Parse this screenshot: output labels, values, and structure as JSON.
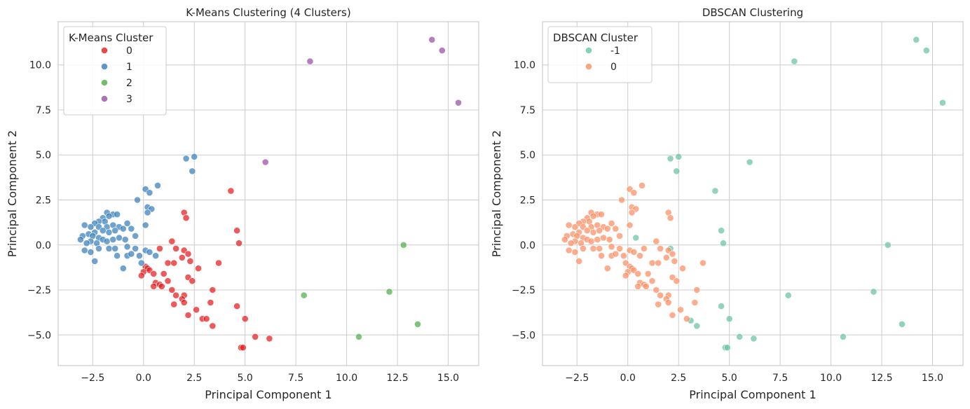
{
  "chart_data": [
    {
      "type": "scatter",
      "title": "K-Means Clustering (4 Clusters)",
      "xlabel": "Principal Component 1",
      "ylabel": "Principal Component 2",
      "xlim": [
        -4.2,
        16.5
      ],
      "ylim": [
        -6.7,
        12.4
      ],
      "xticks": [
        -2.5,
        0,
        2.5,
        5,
        7.5,
        10,
        12.5,
        15
      ],
      "xtick_labels": [
        "−2.5",
        "0.0",
        "2.5",
        "5.0",
        "7.5",
        "10.0",
        "12.5",
        "15.0"
      ],
      "yticks": [
        -5,
        -2.5,
        0,
        2.5,
        5,
        7.5,
        10
      ],
      "ytick_labels": [
        "−5.0",
        "−2.5",
        "0.0",
        "2.5",
        "5.0",
        "7.5",
        "10.0"
      ],
      "grid": true,
      "legend": {
        "title": "K-Means Cluster",
        "placement": "upper left"
      },
      "series": [
        {
          "name": "0",
          "color": "#e41a1c",
          "points": [
            [
              4.3,
              3.0
            ],
            [
              2.0,
              1.8
            ],
            [
              2.1,
              1.5
            ],
            [
              4.6,
              0.8
            ],
            [
              4.7,
              0.1
            ],
            [
              1.4,
              0.2
            ],
            [
              1.6,
              -0.2
            ],
            [
              2.0,
              -0.3
            ],
            [
              2.2,
              -0.5
            ],
            [
              0.8,
              -0.2
            ],
            [
              1.9,
              -0.7
            ],
            [
              2.3,
              -0.9
            ],
            [
              3.7,
              -1.0
            ],
            [
              1.2,
              -1.0
            ],
            [
              1.5,
              -1.0
            ],
            [
              0.1,
              -1.2
            ],
            [
              0.2,
              -1.3
            ],
            [
              0.0,
              -1.5
            ],
            [
              0.3,
              -1.4
            ],
            [
              2.7,
              -1.3
            ],
            [
              -0.1,
              -1.7
            ],
            [
              0.5,
              -1.6
            ],
            [
              1.0,
              -1.6
            ],
            [
              2.2,
              -1.8
            ],
            [
              2.4,
              -2.0
            ],
            [
              0.6,
              -2.1
            ],
            [
              1.2,
              -2.0
            ],
            [
              0.8,
              -2.2
            ],
            [
              0.5,
              -2.3
            ],
            [
              0.9,
              -2.3
            ],
            [
              1.4,
              -2.5
            ],
            [
              3.4,
              -2.5
            ],
            [
              1.6,
              -2.8
            ],
            [
              2.0,
              -2.8
            ],
            [
              1.9,
              -3.0
            ],
            [
              2.0,
              -3.2
            ],
            [
              1.5,
              -3.3
            ],
            [
              3.3,
              -3.2
            ],
            [
              2.6,
              -3.6
            ],
            [
              4.6,
              -3.4
            ],
            [
              2.2,
              -3.9
            ],
            [
              2.9,
              -4.1
            ],
            [
              3.1,
              -4.1
            ],
            [
              3.4,
              -4.5
            ],
            [
              5.0,
              -4.1
            ],
            [
              5.5,
              -5.1
            ],
            [
              6.2,
              -5.2
            ],
            [
              4.8,
              -5.7
            ],
            [
              4.9,
              -5.7
            ]
          ]
        },
        {
          "name": "1",
          "color": "#377eb8",
          "points": [
            [
              2.5,
              4.9
            ],
            [
              2.1,
              4.8
            ],
            [
              2.4,
              4.1
            ],
            [
              0.7,
              3.3
            ],
            [
              0.1,
              3.1
            ],
            [
              0.3,
              2.9
            ],
            [
              -0.3,
              2.5
            ],
            [
              0.2,
              2.1
            ],
            [
              0.4,
              2.0
            ],
            [
              0.2,
              1.8
            ],
            [
              -1.8,
              1.8
            ],
            [
              -1.5,
              1.7
            ],
            [
              -1.3,
              1.7
            ],
            [
              -1.7,
              1.6
            ],
            [
              -2.0,
              1.5
            ],
            [
              -1.9,
              1.3
            ],
            [
              -2.2,
              1.3
            ],
            [
              -1.8,
              1.0
            ],
            [
              -2.4,
              1.2
            ],
            [
              -2.6,
              1.0
            ],
            [
              -2.9,
              1.1
            ],
            [
              -2.2,
              1.0
            ],
            [
              -1.5,
              1.1
            ],
            [
              -1.2,
              1.0
            ],
            [
              -0.8,
              1.2
            ],
            [
              -0.6,
              0.9
            ],
            [
              -1.0,
              0.9
            ],
            [
              -1.4,
              0.8
            ],
            [
              -1.7,
              0.7
            ],
            [
              -2.0,
              0.8
            ],
            [
              -2.4,
              0.7
            ],
            [
              -2.7,
              0.6
            ],
            [
              -3.0,
              0.5
            ],
            [
              -2.5,
              0.5
            ],
            [
              -2.2,
              0.4
            ],
            [
              -2.0,
              0.3
            ],
            [
              -2.6,
              0.2
            ],
            [
              -3.1,
              0.3
            ],
            [
              -2.8,
              0.1
            ],
            [
              -2.3,
              0.1
            ],
            [
              -1.8,
              0.2
            ],
            [
              -1.5,
              0.3
            ],
            [
              -1.2,
              0.4
            ],
            [
              -0.9,
              0.3
            ],
            [
              -0.4,
              0.5
            ],
            [
              0.1,
              1.1
            ],
            [
              -2.9,
              -0.3
            ],
            [
              -2.6,
              -0.4
            ],
            [
              -2.2,
              -0.2
            ],
            [
              -1.7,
              -0.2
            ],
            [
              -1.4,
              -0.2
            ],
            [
              -0.8,
              -0.1
            ],
            [
              -0.4,
              -0.2
            ],
            [
              -2.4,
              -0.9
            ],
            [
              -1.3,
              -0.6
            ],
            [
              -0.8,
              -0.6
            ],
            [
              -0.6,
              -0.5
            ],
            [
              -0.2,
              -0.6
            ],
            [
              0.1,
              -0.3
            ],
            [
              0.3,
              -0.4
            ],
            [
              0.6,
              -0.6
            ],
            [
              -1.0,
              -1.3
            ],
            [
              -0.1,
              -1.0
            ]
          ]
        },
        {
          "name": "2",
          "color": "#4daf4a",
          "points": [
            [
              12.8,
              0.0
            ],
            [
              12.1,
              -2.6
            ],
            [
              7.9,
              -2.8
            ],
            [
              13.5,
              -4.4
            ],
            [
              10.6,
              -5.1
            ]
          ]
        },
        {
          "name": "3",
          "color": "#984ea3",
          "points": [
            [
              8.2,
              10.2
            ],
            [
              14.2,
              11.4
            ],
            [
              14.7,
              10.8
            ],
            [
              15.5,
              7.9
            ],
            [
              6.0,
              4.6
            ]
          ]
        }
      ]
    },
    {
      "type": "scatter",
      "title": "DBSCAN Clustering",
      "xlabel": "Principal Component 1",
      "ylabel": "Principal Component 2",
      "xlim": [
        -4.2,
        16.5
      ],
      "ylim": [
        -6.7,
        12.4
      ],
      "xticks": [
        -2.5,
        0,
        2.5,
        5,
        7.5,
        10,
        12.5,
        15
      ],
      "xtick_labels": [
        "−2.5",
        "0.0",
        "2.5",
        "5.0",
        "7.5",
        "10.0",
        "12.5",
        "15.0"
      ],
      "yticks": [
        -5,
        -2.5,
        0,
        2.5,
        5,
        7.5,
        10
      ],
      "ytick_labels": [
        "−5.0",
        "−2.5",
        "0.0",
        "2.5",
        "5.0",
        "7.5",
        "10.0"
      ],
      "grid": true,
      "legend": {
        "title": "DBSCAN Cluster",
        "placement": "upper left"
      },
      "series": [
        {
          "name": "-1",
          "color": "#66c2a5",
          "points": [
            [
              14.2,
              11.4
            ],
            [
              14.7,
              10.8
            ],
            [
              8.2,
              10.2
            ],
            [
              15.5,
              7.9
            ],
            [
              2.5,
              4.9
            ],
            [
              2.1,
              4.8
            ],
            [
              2.4,
              4.1
            ],
            [
              6.0,
              4.6
            ],
            [
              4.3,
              3.0
            ],
            [
              4.6,
              0.8
            ],
            [
              4.7,
              0.1
            ],
            [
              12.8,
              0.0
            ],
            [
              0.4,
              0.4
            ],
            [
              2.1,
              -0.2
            ],
            [
              12.1,
              -2.6
            ],
            [
              7.9,
              -2.8
            ],
            [
              4.6,
              -3.4
            ],
            [
              13.5,
              -4.4
            ],
            [
              5.0,
              -4.1
            ],
            [
              3.1,
              -4.2
            ],
            [
              3.4,
              -4.5
            ],
            [
              5.5,
              -5.1
            ],
            [
              6.2,
              -5.2
            ],
            [
              10.6,
              -5.1
            ],
            [
              4.8,
              -5.7
            ],
            [
              4.9,
              -5.7
            ]
          ]
        },
        {
          "name": "0",
          "color": "#fc8d62",
          "points": [
            [
              0.7,
              3.3
            ],
            [
              0.1,
              3.1
            ],
            [
              0.3,
              2.9
            ],
            [
              -0.3,
              2.5
            ],
            [
              0.2,
              2.1
            ],
            [
              0.4,
              2.0
            ],
            [
              0.2,
              1.8
            ],
            [
              2.0,
              1.8
            ],
            [
              2.1,
              1.5
            ],
            [
              -1.8,
              1.8
            ],
            [
              -1.5,
              1.7
            ],
            [
              -1.3,
              1.7
            ],
            [
              -1.7,
              1.6
            ],
            [
              -2.0,
              1.5
            ],
            [
              -1.9,
              1.3
            ],
            [
              -2.2,
              1.3
            ],
            [
              -1.8,
              1.0
            ],
            [
              -2.4,
              1.2
            ],
            [
              -2.6,
              1.0
            ],
            [
              -2.9,
              1.1
            ],
            [
              -2.2,
              1.0
            ],
            [
              -1.5,
              1.1
            ],
            [
              -1.2,
              1.0
            ],
            [
              -0.8,
              1.2
            ],
            [
              -0.6,
              0.9
            ],
            [
              -1.0,
              0.9
            ],
            [
              -1.4,
              0.8
            ],
            [
              -1.7,
              0.7
            ],
            [
              -2.0,
              0.8
            ],
            [
              -2.4,
              0.7
            ],
            [
              -2.7,
              0.6
            ],
            [
              -3.0,
              0.5
            ],
            [
              -2.5,
              0.5
            ],
            [
              -2.2,
              0.4
            ],
            [
              -2.0,
              0.3
            ],
            [
              -2.6,
              0.2
            ],
            [
              -3.1,
              0.3
            ],
            [
              -2.8,
              0.1
            ],
            [
              -2.3,
              0.1
            ],
            [
              -1.8,
              0.2
            ],
            [
              -1.5,
              0.3
            ],
            [
              -1.2,
              0.4
            ],
            [
              -0.9,
              0.3
            ],
            [
              -0.4,
              0.5
            ],
            [
              0.1,
              1.1
            ],
            [
              -2.9,
              -0.3
            ],
            [
              -2.6,
              -0.4
            ],
            [
              -2.2,
              -0.2
            ],
            [
              -1.7,
              -0.2
            ],
            [
              -1.4,
              -0.2
            ],
            [
              -0.8,
              -0.1
            ],
            [
              -0.4,
              -0.2
            ],
            [
              -2.4,
              -0.9
            ],
            [
              -1.3,
              -0.6
            ],
            [
              -0.8,
              -0.6
            ],
            [
              -0.6,
              -0.5
            ],
            [
              -0.2,
              -0.6
            ],
            [
              0.1,
              -0.3
            ],
            [
              0.3,
              -0.4
            ],
            [
              0.6,
              -0.6
            ],
            [
              -1.0,
              -1.3
            ],
            [
              -0.1,
              -1.0
            ],
            [
              1.4,
              0.2
            ],
            [
              1.6,
              -0.2
            ],
            [
              2.0,
              -0.3
            ],
            [
              2.2,
              -0.5
            ],
            [
              0.8,
              -0.2
            ],
            [
              1.9,
              -0.7
            ],
            [
              2.3,
              -0.9
            ],
            [
              3.7,
              -1.0
            ],
            [
              1.2,
              -1.0
            ],
            [
              1.5,
              -1.0
            ],
            [
              0.1,
              -1.2
            ],
            [
              0.2,
              -1.3
            ],
            [
              0.0,
              -1.5
            ],
            [
              0.3,
              -1.4
            ],
            [
              2.7,
              -1.3
            ],
            [
              -0.1,
              -1.7
            ],
            [
              0.5,
              -1.6
            ],
            [
              1.0,
              -1.6
            ],
            [
              2.2,
              -1.8
            ],
            [
              2.4,
              -2.0
            ],
            [
              0.6,
              -2.1
            ],
            [
              1.2,
              -2.0
            ],
            [
              0.8,
              -2.2
            ],
            [
              0.5,
              -2.3
            ],
            [
              0.9,
              -2.3
            ],
            [
              1.4,
              -2.5
            ],
            [
              3.4,
              -2.5
            ],
            [
              1.6,
              -2.8
            ],
            [
              2.0,
              -2.8
            ],
            [
              1.9,
              -3.0
            ],
            [
              2.0,
              -3.2
            ],
            [
              1.5,
              -3.3
            ],
            [
              3.3,
              -3.2
            ],
            [
              2.6,
              -3.6
            ],
            [
              2.2,
              -3.9
            ],
            [
              2.9,
              -4.1
            ]
          ]
        }
      ]
    }
  ]
}
